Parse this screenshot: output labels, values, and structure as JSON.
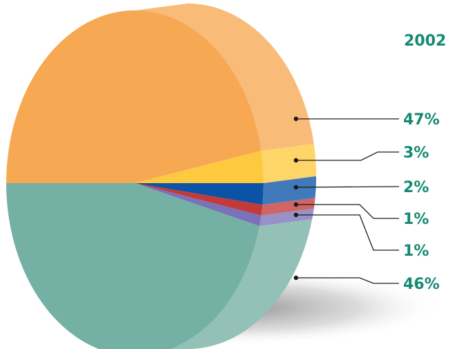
{
  "chart_data": {
    "type": "pie",
    "title": "2002",
    "categories": [
      "",
      "",
      "",
      "",
      "",
      ""
    ],
    "values": [
      47,
      3,
      2,
      1,
      1,
      46
    ],
    "labels": [
      "47%",
      "3%",
      "2%",
      "1%",
      "1%",
      "46%"
    ],
    "colors": [
      "#f7a852",
      "#fdc93f",
      "#0b53a6",
      "#c33a3a",
      "#7a72b8",
      "#74b0a3"
    ],
    "label_color": "#148a73",
    "legend": "none",
    "style": "3d-exploded-edge"
  }
}
